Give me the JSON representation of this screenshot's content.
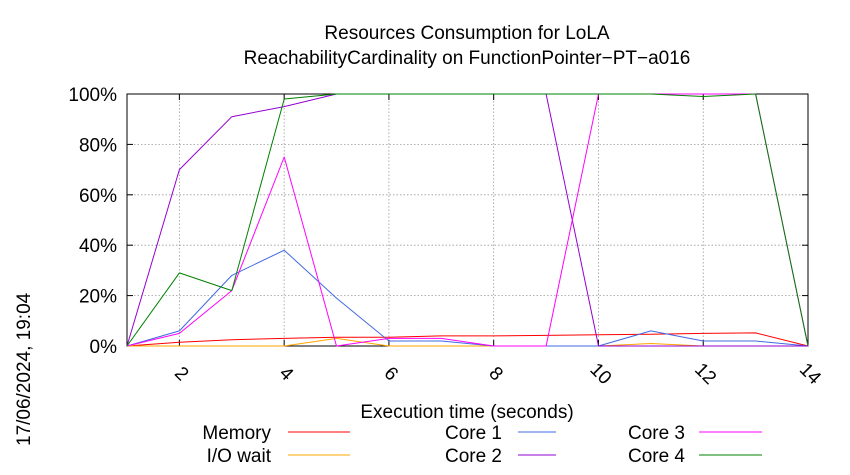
{
  "chart_data": {
    "type": "line",
    "title": [
      "Resources Consumption for LoLA",
      "ReachabilityCardinality on FunctionPointer−PT−a016"
    ],
    "xlabel": "Execution time (seconds)",
    "ylabel": "",
    "timestamp": "17/06/2024, 19:04",
    "xlim": [
      1,
      14
    ],
    "ylim": [
      0,
      100
    ],
    "x_ticks": [
      2,
      4,
      6,
      8,
      10,
      12,
      14
    ],
    "y_ticks": [
      0,
      20,
      40,
      60,
      80,
      100
    ],
    "y_tick_labels": [
      "0%",
      "20%",
      "40%",
      "60%",
      "80%",
      "100%"
    ],
    "grid": true,
    "legend_position": "bottom",
    "x": [
      1,
      2,
      3,
      4,
      5,
      6,
      7,
      8,
      9,
      10,
      11,
      12,
      13,
      14
    ],
    "series": [
      {
        "name": "Memory",
        "color": "#ff0000",
        "values": [
          0,
          1.5,
          2.5,
          3,
          3.5,
          3.5,
          4,
          4,
          4.2,
          4.5,
          4.7,
          5,
          5.2,
          0
        ]
      },
      {
        "name": "I/O wait",
        "color": "#ffa500",
        "values": [
          0,
          0,
          0,
          0,
          3,
          0,
          0,
          0,
          0,
          0,
          1,
          0,
          0,
          0
        ]
      },
      {
        "name": "Core 1",
        "color": "#4169e1",
        "values": [
          0,
          6,
          28,
          38,
          19,
          2,
          2,
          0,
          0,
          0,
          6,
          2,
          2,
          0
        ]
      },
      {
        "name": "Core 2",
        "color": "#9400d3",
        "values": [
          0,
          70,
          91,
          95,
          100,
          100,
          100,
          100,
          100,
          0,
          0,
          0,
          0,
          0
        ]
      },
      {
        "name": "Core 3",
        "color": "#ff00ff",
        "values": [
          0,
          5,
          22,
          75,
          0,
          3,
          3,
          0,
          0,
          100,
          100,
          100,
          100,
          0
        ]
      },
      {
        "name": "Core 4",
        "color": "#008000",
        "values": [
          0,
          29,
          22,
          98,
          100,
          100,
          100,
          100,
          100,
          100,
          100,
          99,
          100,
          0
        ]
      }
    ]
  }
}
